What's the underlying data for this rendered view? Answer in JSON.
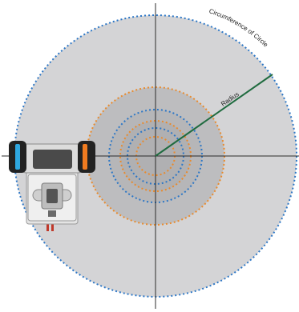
{
  "labels": {
    "radius": "Radius",
    "circumference": "Circumference of Circle"
  },
  "colors": {
    "big_disc": "#d4d4d6",
    "inner_disc": "#bdbdbf",
    "core_disc": "#b0b0b2",
    "blue_dots": "#2d77c6",
    "orange_dots": "#e98a2c",
    "radius_line": "#1f6b3f",
    "axis": "#2b2b2b",
    "robot_body": "#e6e6e6",
    "robot_screen": "#4a4a4a",
    "wheel": "#222222",
    "wheel_left_accent": "#2ea7e0",
    "wheel_right_accent": "#f07b20",
    "sensor_red": "#c0392b"
  },
  "icons": {
    "robot": "robot-icon"
  }
}
